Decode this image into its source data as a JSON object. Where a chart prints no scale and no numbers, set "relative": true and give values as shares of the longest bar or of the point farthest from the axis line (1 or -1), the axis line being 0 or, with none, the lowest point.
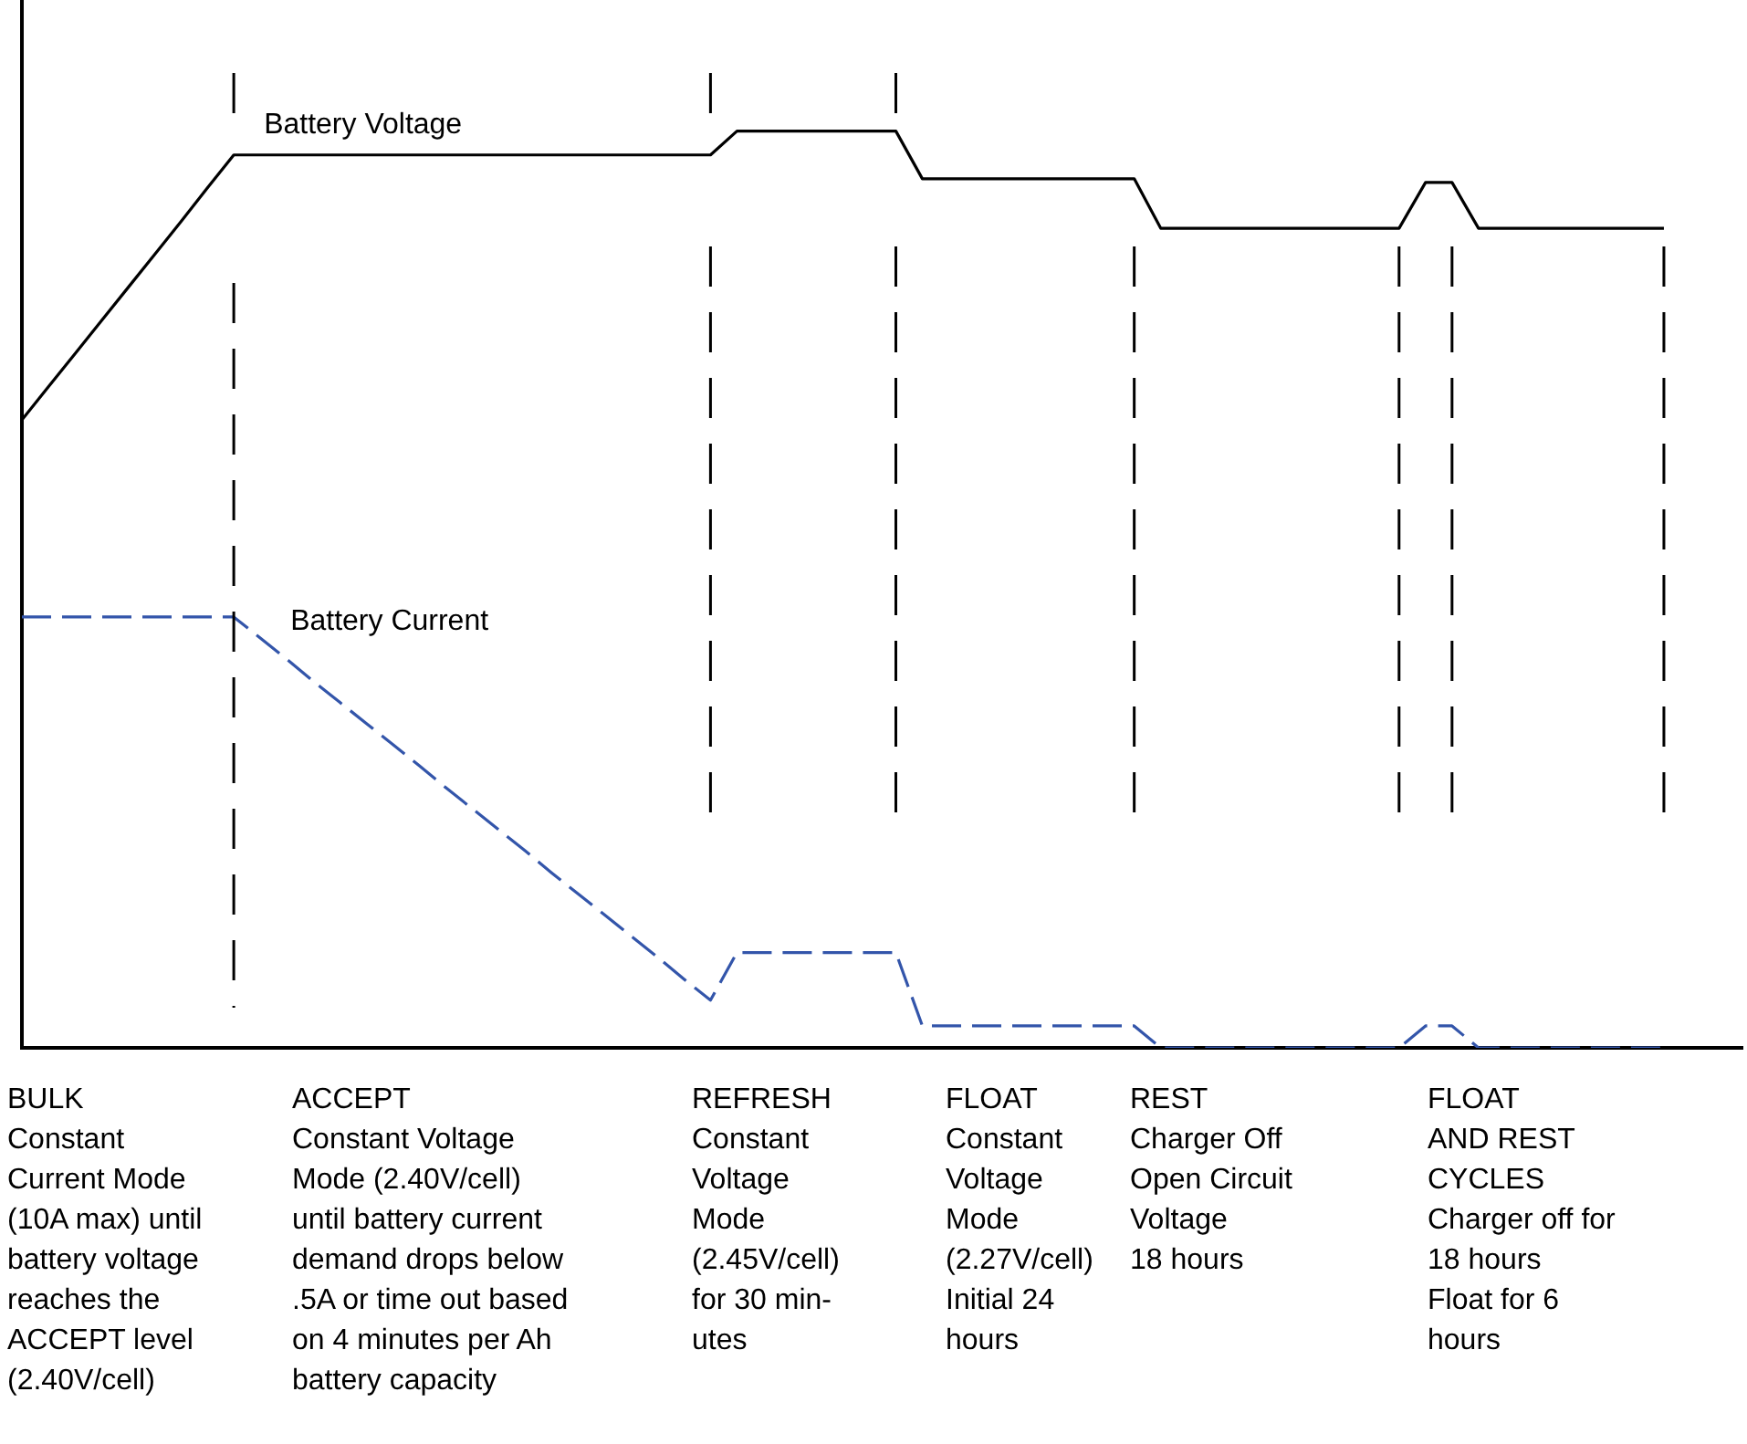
{
  "chart_data": {
    "type": "line",
    "relative": true,
    "categories": [
      null,
      null,
      null,
      null,
      null,
      null,
      null,
      null,
      null,
      null,
      null,
      null,
      null,
      null,
      null,
      null,
      null,
      null,
      null,
      null,
      null,
      null,
      null,
      null,
      null,
      null,
      null,
      null,
      null,
      null,
      null,
      null,
      null,
      null,
      null,
      null,
      null,
      null,
      null,
      null,
      null,
      null,
      null,
      null,
      null,
      null,
      null,
      null,
      null,
      null,
      null,
      null,
      null,
      null,
      null,
      null,
      null,
      null,
      null,
      null,
      null,
      null,
      null,
      null,
      null,
      null
    ],
    "series": [
      {
        "name": "Battery Voltage",
        "color": "#000000",
        "line_style": "solid",
        "values": [
          0.685,
          0.721,
          0.757,
          0.793,
          0.829,
          0.865,
          0.901,
          0.938,
          0.974,
          0.974,
          0.974,
          0.974,
          0.974,
          0.974,
          0.974,
          0.974,
          0.974,
          0.974,
          0.974,
          0.974,
          0.974,
          0.974,
          0.974,
          0.974,
          0.974,
          0.974,
          0.974,
          1,
          1,
          1,
          1,
          1,
          1,
          1,
          0.948,
          0.948,
          0.948,
          0.948,
          0.948,
          0.948,
          0.948,
          0.948,
          0.948,
          0.894,
          0.894,
          0.894,
          0.894,
          0.894,
          0.894,
          0.894,
          0.894,
          0.894,
          0.894,
          0.944,
          0.944,
          0.894,
          0.894,
          0.894,
          0.894,
          0.894,
          0.894,
          0.894,
          0.894,
          null,
          null,
          null
        ]
      },
      {
        "name": "Battery Current",
        "color": "#3355aa",
        "line_style": "dashed",
        "values": [
          0.47,
          0.47,
          0.47,
          0.47,
          0.47,
          0.47,
          0.47,
          0.47,
          0.47,
          0.447,
          0.424,
          0.4,
          0.377,
          0.354,
          0.331,
          0.308,
          0.284,
          0.261,
          0.238,
          0.215,
          0.191,
          0.168,
          0.145,
          0.122,
          0.099,
          0.075,
          0.052,
          0.104,
          0.104,
          0.104,
          0.104,
          0.104,
          0.104,
          0.104,
          0.024,
          0.024,
          0.024,
          0.024,
          0.024,
          0.024,
          0.024,
          0.024,
          0.024,
          0,
          0,
          0,
          0,
          0,
          0,
          0,
          0,
          0,
          0,
          0.024,
          0.024,
          0,
          0,
          0,
          0,
          0,
          0,
          0,
          0,
          null,
          null,
          null
        ]
      }
    ],
    "grid": false,
    "legend": false,
    "marker": "none",
    "annotations": [
      "BULK\nConstant\nCurrent Mode\n(10A max) until\nbattery voltage\nreaches the\nACCEPT level\n(2.40V/cell)",
      "ACCEPT\nConstant Voltage\nMode (2.40V/cell)\nuntil battery current\ndemand drops below\n.5A or time out based\non 4 minutes per Ah\nbattery capacity",
      "REFRESH\nConstant\nVoltage\nMode\n(2.45V/cell)\nfor 30 min-\nutes",
      "FLOAT\nConstant\nVoltage\nMode\n(2.27V/cell)\nInitial 24\nhours",
      "REST\nCharger Off\nOpen Circuit\nVoltage\n18 hours",
      "FLOAT\nAND REST\nCYCLES\nCharger off for\n18 hours\nFloat for 6\nhours"
    ]
  }
}
